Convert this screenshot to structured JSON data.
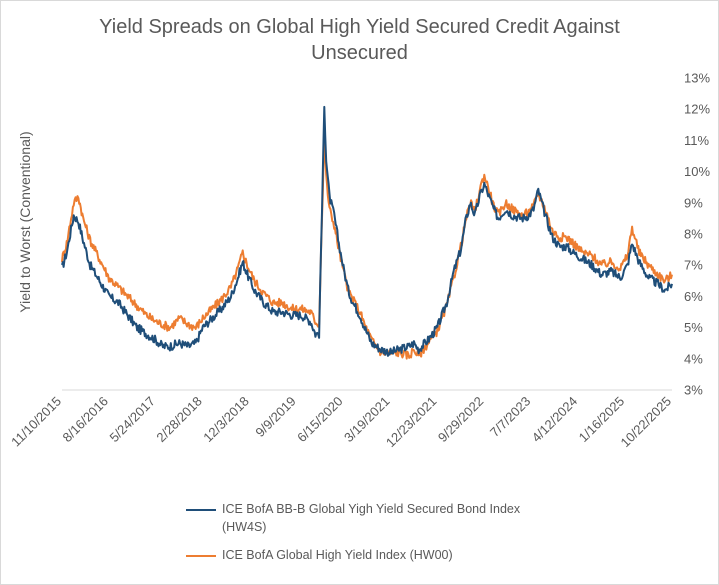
{
  "chart_data": {
    "type": "line",
    "title_line1": "Yield Spreads on Global High Yield Secured Credit Against",
    "title_line2": "Unsecured",
    "ylabel": "Yield to Worst (Conventional)",
    "ylim": [
      3,
      13
    ],
    "y_ticks": [
      "3%",
      "4%",
      "5%",
      "6%",
      "7%",
      "8%",
      "9%",
      "10%",
      "11%",
      "12%",
      "13%"
    ],
    "x_ticks": [
      "11/10/2015",
      "8/16/2016",
      "5/24/2017",
      "2/28/2018",
      "12/3/2018",
      "9/9/2019",
      "6/15/2020",
      "3/19/2021",
      "12/23/2021",
      "9/29/2022",
      "7/7/2023",
      "4/12/2024",
      "1/16/2025",
      "10/22/2025"
    ],
    "series": [
      {
        "name": "ICE BofA BB-B Global Yigh Yield Secured Bond Index (HW4S)",
        "color": "#1f4e79",
        "keypoints": [
          [
            0.0,
            6.9
          ],
          [
            0.1,
            7.4
          ],
          [
            0.25,
            8.6
          ],
          [
            0.35,
            8.4
          ],
          [
            0.45,
            7.8
          ],
          [
            0.6,
            7.0
          ],
          [
            0.8,
            6.5
          ],
          [
            1.0,
            6.0
          ],
          [
            1.2,
            5.8
          ],
          [
            1.4,
            5.4
          ],
          [
            1.6,
            5.0
          ],
          [
            1.8,
            4.8
          ],
          [
            2.0,
            4.6
          ],
          [
            2.15,
            4.4
          ],
          [
            2.3,
            4.4
          ],
          [
            2.5,
            4.5
          ],
          [
            2.7,
            4.4
          ],
          [
            2.85,
            4.5
          ],
          [
            3.0,
            5.0
          ],
          [
            3.2,
            5.3
          ],
          [
            3.4,
            5.6
          ],
          [
            3.6,
            6.0
          ],
          [
            3.75,
            6.6
          ],
          [
            3.85,
            7.1
          ],
          [
            3.95,
            6.7
          ],
          [
            4.1,
            6.2
          ],
          [
            4.3,
            5.8
          ],
          [
            4.5,
            5.5
          ],
          [
            4.7,
            5.5
          ],
          [
            4.9,
            5.4
          ],
          [
            5.1,
            5.4
          ],
          [
            5.3,
            5.2
          ],
          [
            5.4,
            4.8
          ],
          [
            5.48,
            4.8
          ],
          [
            5.52,
            7.5
          ],
          [
            5.56,
            10.0
          ],
          [
            5.59,
            12.2
          ],
          [
            5.63,
            10.4
          ],
          [
            5.7,
            9.2
          ],
          [
            5.8,
            8.6
          ],
          [
            5.9,
            7.7
          ],
          [
            6.0,
            6.9
          ],
          [
            6.1,
            6.2
          ],
          [
            6.2,
            5.8
          ],
          [
            6.35,
            5.4
          ],
          [
            6.45,
            5.0
          ],
          [
            6.6,
            4.5
          ],
          [
            6.8,
            4.3
          ],
          [
            7.0,
            4.2
          ],
          [
            7.2,
            4.3
          ],
          [
            7.4,
            4.4
          ],
          [
            7.5,
            4.5
          ],
          [
            7.6,
            4.3
          ],
          [
            7.8,
            4.6
          ],
          [
            8.0,
            5.0
          ],
          [
            8.2,
            5.8
          ],
          [
            8.35,
            6.8
          ],
          [
            8.5,
            7.5
          ],
          [
            8.6,
            8.4
          ],
          [
            8.7,
            9.0
          ],
          [
            8.8,
            8.6
          ],
          [
            8.9,
            9.2
          ],
          [
            9.0,
            9.6
          ],
          [
            9.1,
            9.2
          ],
          [
            9.2,
            8.8
          ],
          [
            9.3,
            8.5
          ],
          [
            9.45,
            8.8
          ],
          [
            9.6,
            8.6
          ],
          [
            9.8,
            8.5
          ],
          [
            9.95,
            8.6
          ],
          [
            10.05,
            8.8
          ],
          [
            10.15,
            9.4
          ],
          [
            10.3,
            8.6
          ],
          [
            10.45,
            7.9
          ],
          [
            10.6,
            7.6
          ],
          [
            10.75,
            7.6
          ],
          [
            10.9,
            7.4
          ],
          [
            11.1,
            7.2
          ],
          [
            11.3,
            7.0
          ],
          [
            11.5,
            6.7
          ],
          [
            11.7,
            6.8
          ],
          [
            11.9,
            6.6
          ],
          [
            12.05,
            7.0
          ],
          [
            12.15,
            7.7
          ],
          [
            12.3,
            7.1
          ],
          [
            12.5,
            6.6
          ],
          [
            12.7,
            6.4
          ],
          [
            12.85,
            6.2
          ],
          [
            13.0,
            6.4
          ]
        ]
      },
      {
        "name": "ICE BofA Global High Yield Index (HW00)",
        "color": "#ed7d31",
        "keypoints": [
          [
            0.0,
            7.2
          ],
          [
            0.1,
            7.7
          ],
          [
            0.25,
            9.0
          ],
          [
            0.35,
            9.2
          ],
          [
            0.45,
            8.5
          ],
          [
            0.6,
            7.8
          ],
          [
            0.8,
            7.2
          ],
          [
            1.0,
            6.6
          ],
          [
            1.2,
            6.3
          ],
          [
            1.4,
            6.0
          ],
          [
            1.6,
            5.7
          ],
          [
            1.8,
            5.4
          ],
          [
            2.0,
            5.2
          ],
          [
            2.15,
            5.1
          ],
          [
            2.3,
            5.0
          ],
          [
            2.5,
            5.3
          ],
          [
            2.7,
            5.1
          ],
          [
            2.85,
            5.0
          ],
          [
            3.0,
            5.3
          ],
          [
            3.2,
            5.6
          ],
          [
            3.4,
            5.9
          ],
          [
            3.6,
            6.3
          ],
          [
            3.75,
            6.9
          ],
          [
            3.85,
            7.4
          ],
          [
            3.95,
            7.0
          ],
          [
            4.1,
            6.5
          ],
          [
            4.3,
            6.1
          ],
          [
            4.5,
            5.8
          ],
          [
            4.7,
            5.8
          ],
          [
            4.9,
            5.6
          ],
          [
            5.1,
            5.6
          ],
          [
            5.3,
            5.5
          ],
          [
            5.4,
            5.2
          ],
          [
            5.48,
            5.1
          ],
          [
            5.52,
            7.5
          ],
          [
            5.56,
            9.5
          ],
          [
            5.59,
            11.3
          ],
          [
            5.63,
            9.8
          ],
          [
            5.7,
            8.8
          ],
          [
            5.8,
            8.3
          ],
          [
            5.9,
            7.5
          ],
          [
            6.0,
            6.8
          ],
          [
            6.1,
            6.2
          ],
          [
            6.2,
            5.9
          ],
          [
            6.35,
            5.5
          ],
          [
            6.45,
            5.1
          ],
          [
            6.6,
            4.6
          ],
          [
            6.8,
            4.2
          ],
          [
            7.0,
            4.2
          ],
          [
            7.2,
            4.2
          ],
          [
            7.4,
            4.1
          ],
          [
            7.5,
            4.3
          ],
          [
            7.6,
            4.1
          ],
          [
            7.8,
            4.5
          ],
          [
            8.0,
            4.9
          ],
          [
            8.2,
            5.7
          ],
          [
            8.35,
            6.6
          ],
          [
            8.5,
            7.6
          ],
          [
            8.6,
            8.4
          ],
          [
            8.7,
            9.0
          ],
          [
            8.8,
            8.7
          ],
          [
            8.9,
            9.4
          ],
          [
            9.0,
            9.9
          ],
          [
            9.1,
            9.4
          ],
          [
            9.2,
            8.9
          ],
          [
            9.3,
            8.6
          ],
          [
            9.45,
            9.0
          ],
          [
            9.6,
            8.8
          ],
          [
            9.8,
            8.6
          ],
          [
            9.95,
            8.7
          ],
          [
            10.05,
            8.9
          ],
          [
            10.15,
            9.3
          ],
          [
            10.3,
            8.8
          ],
          [
            10.45,
            8.1
          ],
          [
            10.6,
            7.9
          ],
          [
            10.75,
            7.9
          ],
          [
            10.9,
            7.7
          ],
          [
            11.1,
            7.4
          ],
          [
            11.3,
            7.3
          ],
          [
            11.5,
            7.0
          ],
          [
            11.7,
            7.1
          ],
          [
            11.9,
            6.9
          ],
          [
            12.05,
            7.3
          ],
          [
            12.15,
            8.2
          ],
          [
            12.3,
            7.4
          ],
          [
            12.5,
            7.0
          ],
          [
            12.7,
            6.7
          ],
          [
            12.85,
            6.5
          ],
          [
            13.0,
            6.7
          ]
        ]
      }
    ]
  },
  "legend": {
    "item1": "ICE BofA BB-B Global Yigh Yield Secured Bond Index (HW4S)",
    "item2": "ICE BofA Global High Yield Index (HW00)"
  }
}
